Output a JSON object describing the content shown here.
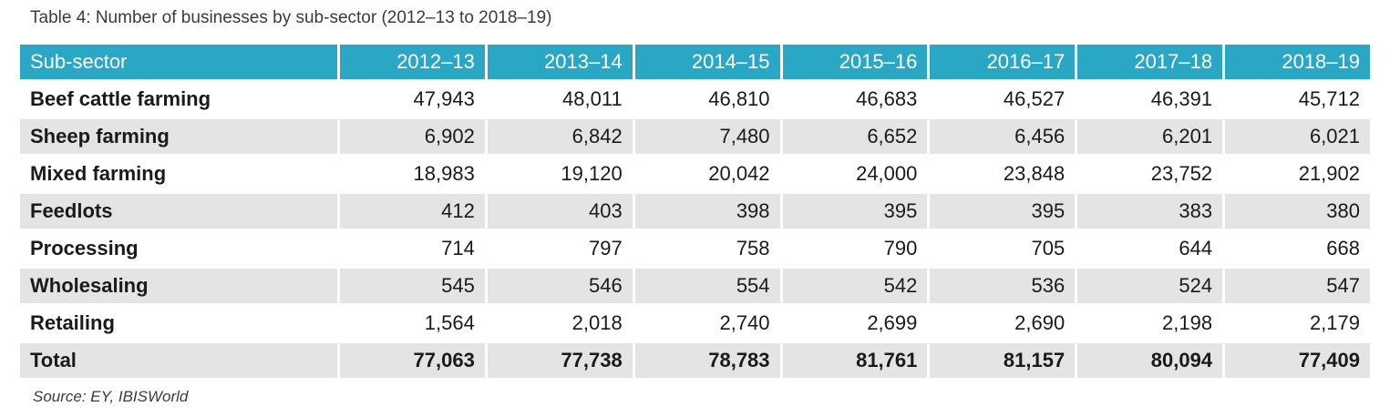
{
  "caption": "Table 4: Number of businesses by sub-sector (2012–13 to 2018–19)",
  "header": [
    "Sub-sector",
    "2012–13",
    "2013–14",
    "2014–15",
    "2015–16",
    "2016–17",
    "2017–18",
    "2018–19"
  ],
  "rows": [
    {
      "label": "Beef cattle farming",
      "values": [
        "47,943",
        "48,011",
        "46,810",
        "46,683",
        "46,527",
        "46,391",
        "45,712"
      ]
    },
    {
      "label": "Sheep farming",
      "values": [
        "6,902",
        "6,842",
        "7,480",
        "6,652",
        "6,456",
        "6,201",
        "6,021"
      ]
    },
    {
      "label": "Mixed farming",
      "values": [
        "18,983",
        "19,120",
        "20,042",
        "24,000",
        "23,848",
        "23,752",
        "21,902"
      ]
    },
    {
      "label": "Feedlots",
      "values": [
        "412",
        "403",
        "398",
        "395",
        "395",
        "383",
        "380"
      ]
    },
    {
      "label": "Processing",
      "values": [
        "714",
        "797",
        "758",
        "790",
        "705",
        "644",
        "668"
      ]
    },
    {
      "label": "Wholesaling",
      "values": [
        "545",
        "546",
        "554",
        "542",
        "536",
        "524",
        "547"
      ]
    },
    {
      "label": "Retailing",
      "values": [
        "1,564",
        "2,018",
        "2,740",
        "2,699",
        "2,690",
        "2,198",
        "2,179"
      ]
    },
    {
      "label": "Total",
      "values": [
        "77,063",
        "77,738",
        "78,783",
        "81,761",
        "81,157",
        "80,094",
        "77,409"
      ]
    }
  ],
  "source": "Source: EY, IBISWorld",
  "colors": {
    "header_bg": "#2aa7c4",
    "shade_bg": "#e5e4e4"
  }
}
